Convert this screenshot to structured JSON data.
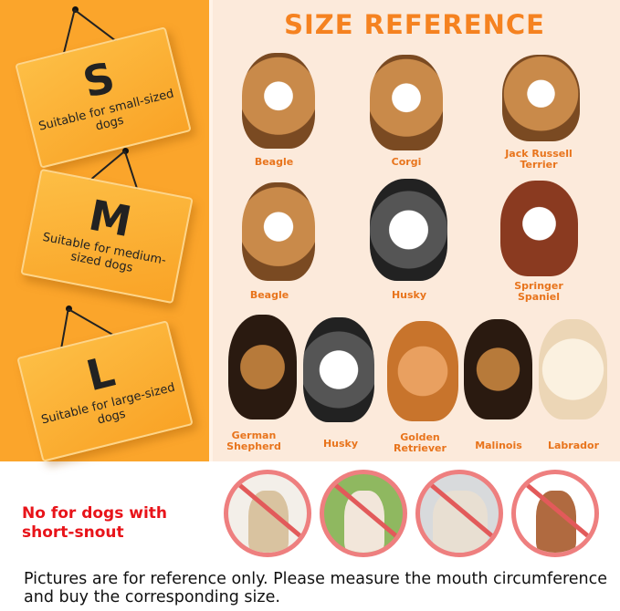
{
  "sizes": [
    {
      "letter": "S",
      "desc": "Suitable for small-sized dogs"
    },
    {
      "letter": "M",
      "desc": "Suitable for medium-sized dogs"
    },
    {
      "letter": "L",
      "desc": "Suitable for large-sized dogs"
    }
  ],
  "title": "SIZE REFERENCE",
  "dogs": {
    "row1": [
      "Beagle",
      "Corgi",
      "Jack Russell Terrier"
    ],
    "row2": [
      "Beagle",
      "Husky",
      "Springer Spaniel"
    ],
    "row3": [
      "German Shepherd",
      "Husky",
      "Golden Retriever",
      "Malinois",
      "Labrador"
    ]
  },
  "warning": "No for dogs with short-snout",
  "banned_icon": "prohibited-sign-icon",
  "footer": "Pictures are for reference only. Please measure the mouth circumference and buy the corresponding size.",
  "colors": {
    "panel": "#FBA52B",
    "background": "#FCEADB",
    "accent": "#F58220",
    "warning": "#E8141A"
  }
}
